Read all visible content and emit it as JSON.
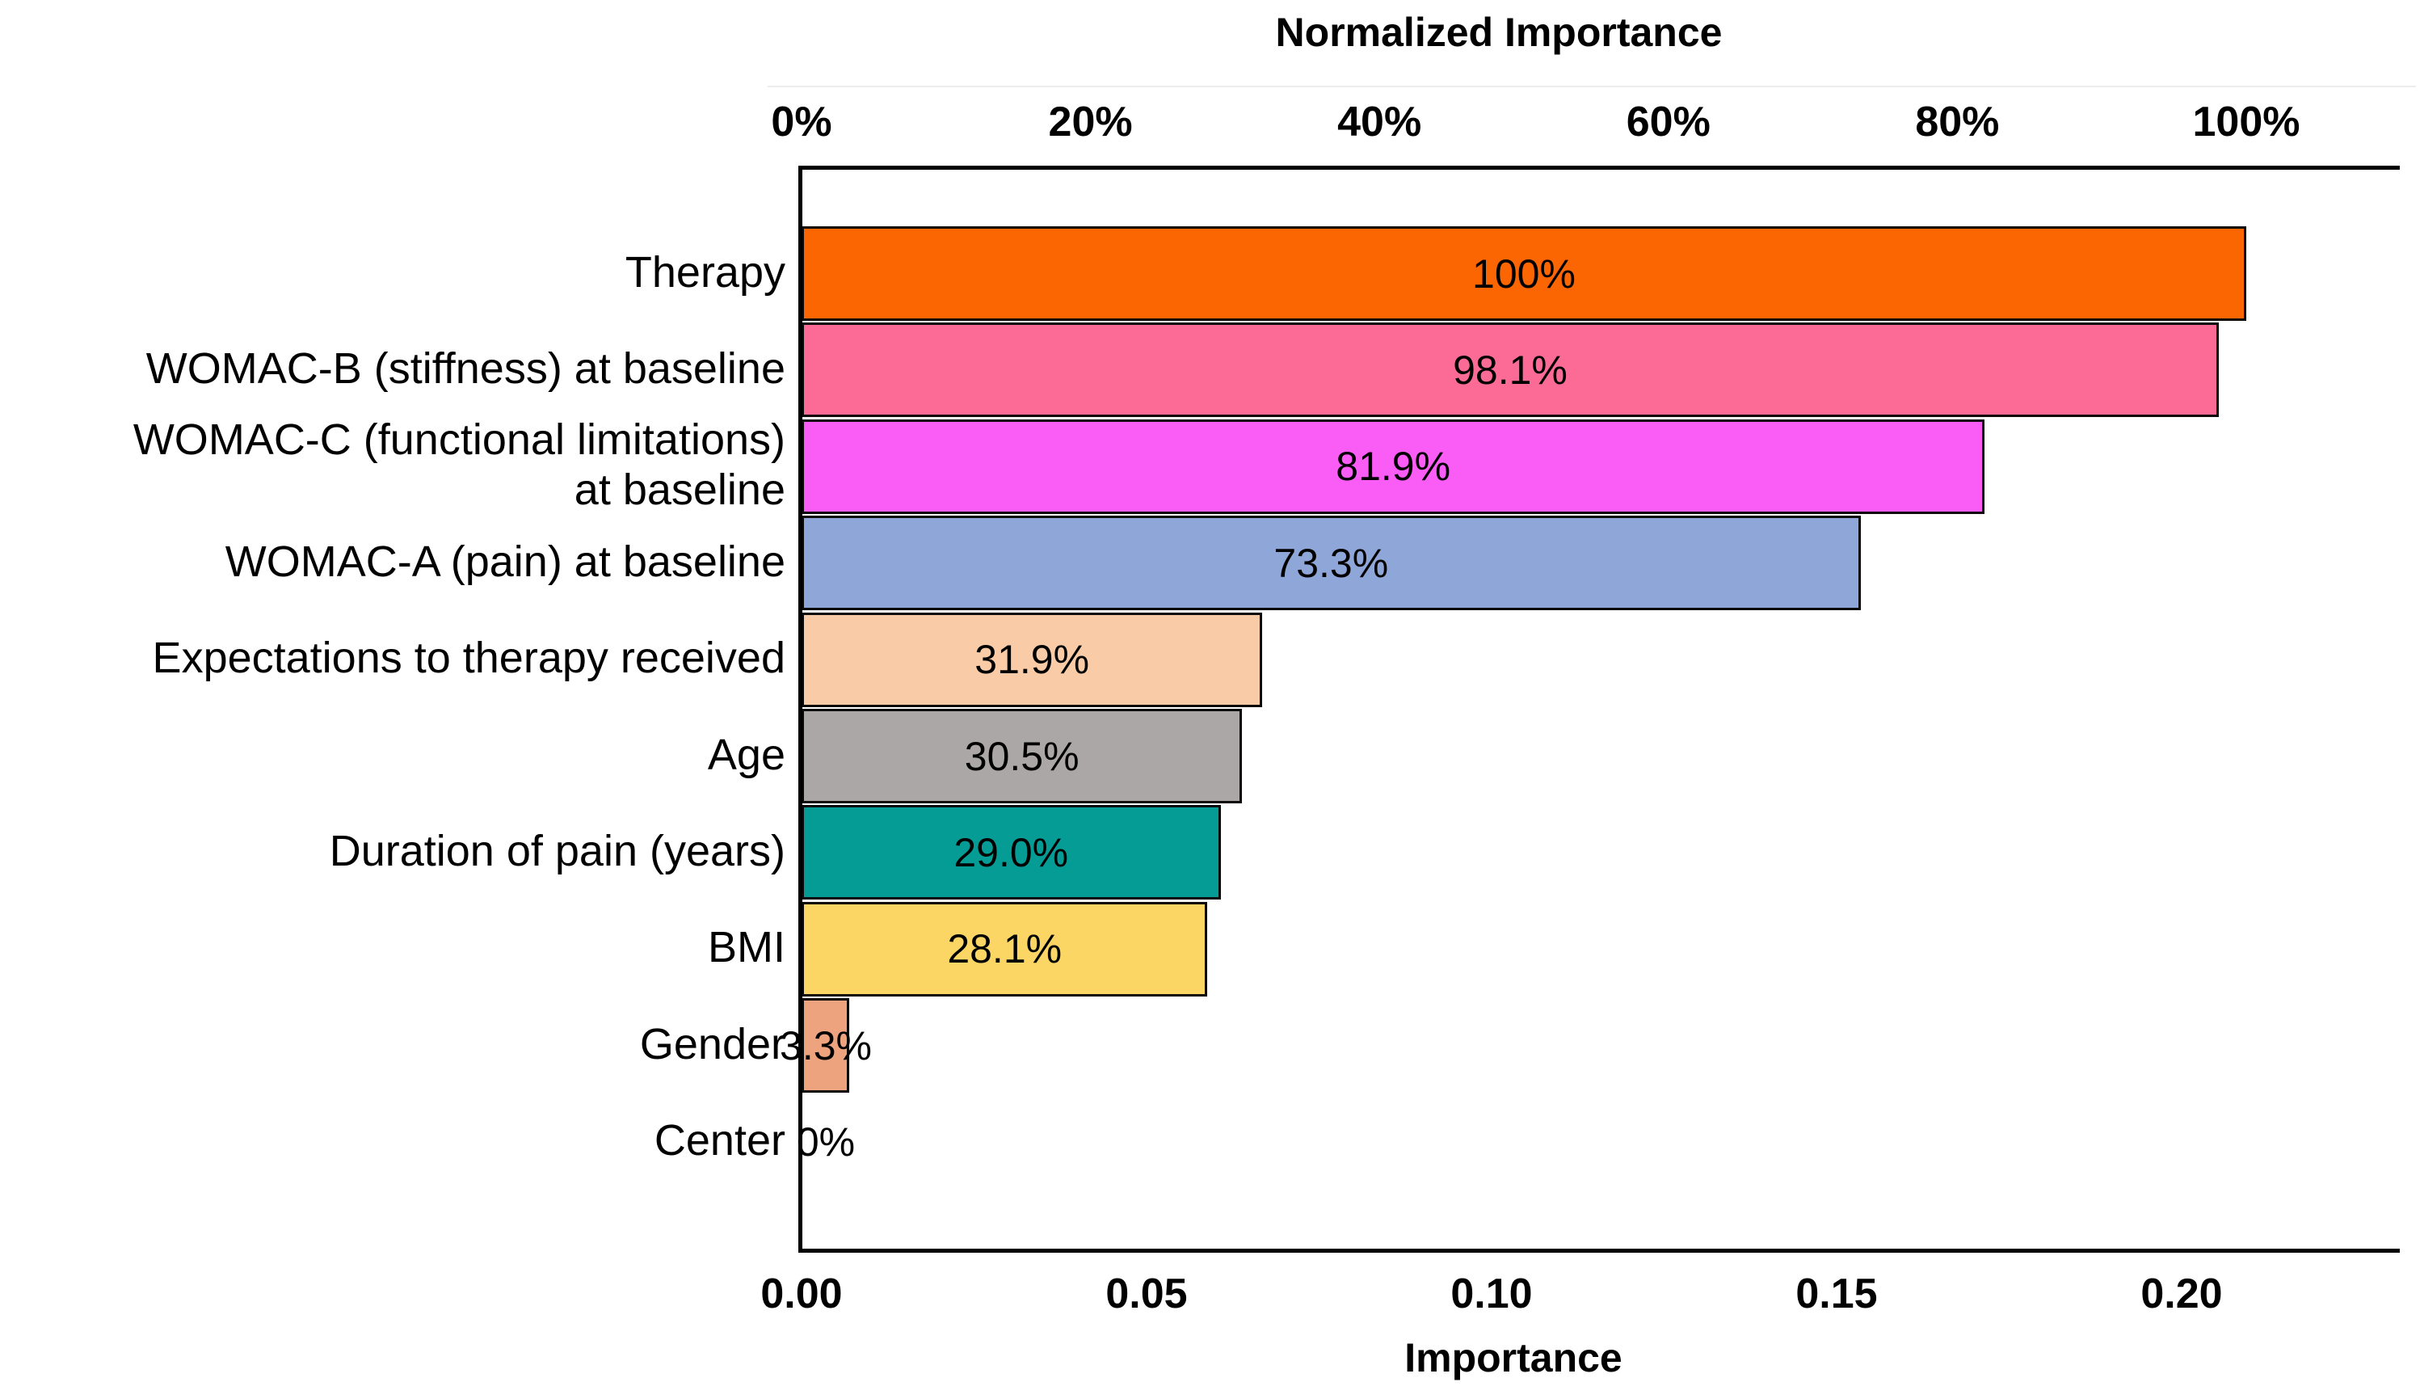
{
  "chart_data": {
    "type": "bar",
    "orientation": "horizontal",
    "title_top": "Normalized Importance",
    "xlabel_bottom": "Importance",
    "top_axis": {
      "label": "Normalized Importance",
      "tick_labels": [
        "0%",
        "20%",
        "40%",
        "60%",
        "80%",
        "100%"
      ],
      "tick_values": [
        0,
        20,
        40,
        60,
        80,
        100
      ],
      "range_pct": [
        0,
        110
      ]
    },
    "bottom_axis": {
      "label": "Importance",
      "tick_labels": [
        "0.00",
        "0.05",
        "0.10",
        "0.15",
        "0.20"
      ],
      "tick_values": [
        0,
        0.05,
        0.1,
        0.15,
        0.2
      ],
      "range_importance": [
        0,
        0.23
      ]
    },
    "grid": "off",
    "legend": "none",
    "note_importance_at_100pct": 0.209,
    "categories": [
      "Therapy",
      "WOMAC-B (stiffness) at baseline",
      "WOMAC-C (functional limitations) at baseline",
      "WOMAC-A (pain) at baseline",
      "Expectations to therapy received",
      "Age",
      "Duration of pain (years)",
      "BMI",
      "Gender",
      "Center"
    ],
    "values_pct": [
      100,
      98.1,
      81.9,
      73.3,
      31.9,
      30.5,
      29.0,
      28.1,
      3.3,
      0
    ],
    "values_importance_est": [
      0.209,
      0.205,
      0.171,
      0.153,
      0.067,
      0.064,
      0.061,
      0.059,
      0.007,
      0
    ],
    "bars": [
      {
        "slug": "therapy",
        "label_lines": [
          "Therapy"
        ],
        "pct": 100,
        "pct_label": "100%",
        "color": "#FB6502"
      },
      {
        "slug": "womac-b",
        "label_lines": [
          "WOMAC-B (stiffness) at baseline"
        ],
        "pct": 98.1,
        "pct_label": "98.1%",
        "color": "#FB6B96"
      },
      {
        "slug": "womac-c",
        "label_lines": [
          "WOMAC-C (functional limitations)",
          "at baseline"
        ],
        "pct": 81.9,
        "pct_label": "81.9%",
        "color": "#FA5DF5"
      },
      {
        "slug": "womac-a",
        "label_lines": [
          "WOMAC-A (pain) at baseline"
        ],
        "pct": 73.3,
        "pct_label": "73.3%",
        "color": "#8FA6D8"
      },
      {
        "slug": "expectations",
        "label_lines": [
          "Expectations to therapy received"
        ],
        "pct": 31.9,
        "pct_label": "31.9%",
        "color": "#F9CBA6"
      },
      {
        "slug": "age",
        "label_lines": [
          "Age"
        ],
        "pct": 30.5,
        "pct_label": "30.5%",
        "color": "#ABA7A7"
      },
      {
        "slug": "duration",
        "label_lines": [
          "Duration of pain (years)"
        ],
        "pct": 29.0,
        "pct_label": "29.0%",
        "color": "#059C95"
      },
      {
        "slug": "bmi",
        "label_lines": [
          "BMI"
        ],
        "pct": 28.1,
        "pct_label": "28.1%",
        "color": "#FBD665"
      },
      {
        "slug": "gender",
        "label_lines": [
          "Gender"
        ],
        "pct": 3.3,
        "pct_label": "3.3%",
        "color": "#EDA47E"
      },
      {
        "slug": "center",
        "label_lines": [
          "Center"
        ],
        "pct": 0,
        "pct_label": "0%",
        "color": null
      }
    ]
  }
}
